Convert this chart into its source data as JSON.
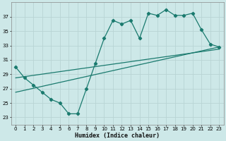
{
  "xlabel": "Humidex (Indice chaleur)",
  "background_color": "#cde8e8",
  "grid_color": "#b8d4d4",
  "line_color": "#1a7a6e",
  "x_values": [
    0,
    1,
    2,
    3,
    4,
    5,
    6,
    7,
    8,
    9,
    10,
    11,
    12,
    13,
    14,
    15,
    16,
    17,
    18,
    19,
    20,
    21,
    22,
    23
  ],
  "main_line": [
    30.0,
    28.5,
    27.5,
    26.5,
    25.5,
    25.0,
    23.5,
    23.5,
    27.0,
    30.5,
    34.0,
    36.5,
    36.0,
    36.5,
    34.0,
    37.5,
    37.2,
    38.0,
    37.2,
    37.2,
    37.5,
    35.2,
    33.2,
    32.8
  ],
  "upper_line": [
    [
      0,
      28.5
    ],
    [
      23,
      32.5
    ]
  ],
  "lower_line": [
    [
      0,
      26.5
    ],
    [
      23,
      32.8
    ]
  ],
  "ylim": [
    22.0,
    39.0
  ],
  "xlim": [
    -0.5,
    23.5
  ],
  "yticks": [
    23,
    25,
    27,
    29,
    31,
    33,
    35,
    37
  ],
  "xticks": [
    0,
    1,
    2,
    3,
    4,
    5,
    6,
    7,
    8,
    9,
    10,
    11,
    12,
    13,
    14,
    15,
    16,
    17,
    18,
    19,
    20,
    21,
    22,
    23
  ],
  "marker": "D",
  "markersize": 2.2,
  "linewidth": 0.9,
  "tick_fontsize": 5.0,
  "xlabel_fontsize": 6.0
}
